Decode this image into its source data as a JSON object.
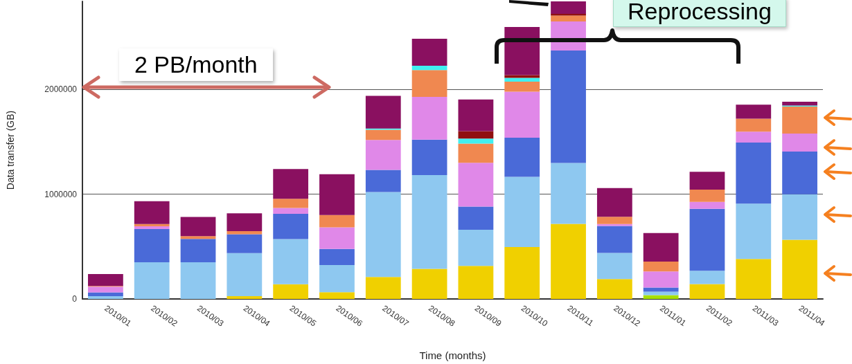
{
  "chart_data": {
    "type": "bar",
    "stacked": true,
    "xlabel": "Time (months)",
    "ylabel": "Data transfer (GB)",
    "categories": [
      "2010/01",
      "2010/02",
      "2010/03",
      "2010/04",
      "2010/05",
      "2010/06",
      "2010/07",
      "2010/08",
      "2010/09",
      "2010/10",
      "2010/11",
      "2010/12",
      "2011/01",
      "2011/02",
      "2011/03",
      "2011/04"
    ],
    "ylim": [
      0,
      2840000
    ],
    "yticks": [
      0,
      1000000,
      2000000
    ],
    "grid": "y",
    "series": [
      {
        "color": "#a8e000",
        "values": [
          null,
          null,
          null,
          null,
          null,
          null,
          null,
          null,
          null,
          null,
          null,
          null,
          37000,
          null,
          null,
          null
        ]
      },
      {
        "color": "#f0d000",
        "values": [
          null,
          null,
          null,
          26000,
          140000,
          64000,
          210000,
          287000,
          315000,
          496000,
          717000,
          190000,
          null,
          142000,
          382000,
          564000
        ]
      },
      {
        "color": "#8ec8f0",
        "values": [
          26000,
          350000,
          350000,
          411000,
          431000,
          260000,
          811000,
          896000,
          345000,
          669000,
          581000,
          249000,
          33000,
          127000,
          527000,
          435000
        ]
      },
      {
        "color": "#4a6ad8",
        "values": [
          37000,
          317000,
          223000,
          181000,
          241000,
          153000,
          210000,
          337000,
          221000,
          374000,
          1073000,
          258000,
          39000,
          592000,
          584000,
          407000
        ]
      },
      {
        "color": "#e088e8",
        "values": [
          54000,
          26000,
          null,
          null,
          56000,
          207000,
          286000,
          409000,
          418000,
          439000,
          278000,
          18000,
          153000,
          66000,
          103000,
          172000
        ]
      },
      {
        "color": "#f08850",
        "values": [
          7000,
          22000,
          26000,
          29000,
          88000,
          116000,
          98000,
          256000,
          184000,
          96000,
          56000,
          70000,
          94000,
          116000,
          125000,
          258000
        ]
      },
      {
        "color": "#40f0f0",
        "values": [
          null,
          null,
          null,
          null,
          null,
          null,
          11000,
          41000,
          48000,
          37000,
          null,
          null,
          null,
          null,
          null,
          10000
        ]
      },
      {
        "color": "#901010",
        "values": [
          null,
          null,
          null,
          null,
          null,
          null,
          null,
          null,
          70000,
          26000,
          16000,
          null,
          null,
          null,
          null,
          null
        ]
      },
      {
        "color": "#8a1060",
        "values": [
          113000,
          218000,
          184000,
          170000,
          284000,
          391000,
          313000,
          258000,
          302000,
          459000,
          119000,
          273000,
          273000,
          170000,
          133000,
          37000
        ]
      }
    ],
    "annotations": [
      "2 PB/month",
      "Reprocessing"
    ]
  }
}
